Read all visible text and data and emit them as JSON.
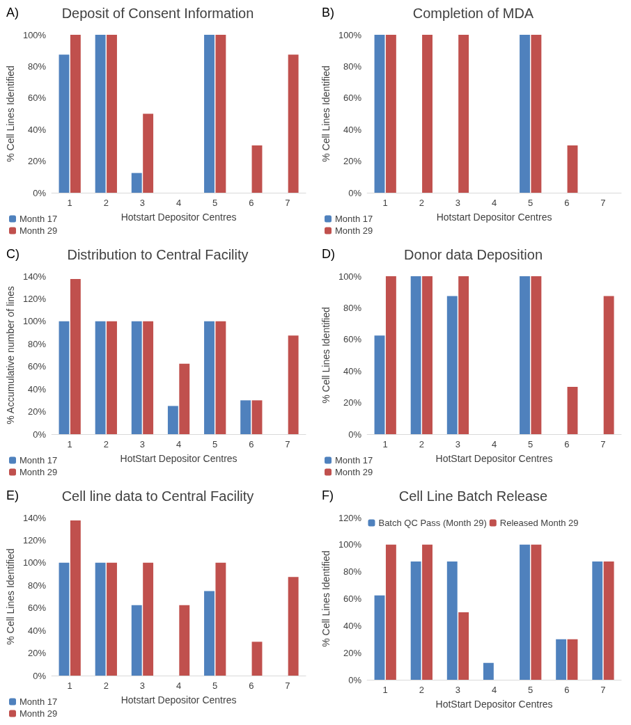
{
  "chart_data": [
    {
      "type": "bar",
      "title": "Deposit of Consent Information",
      "annotations": [
        "A)"
      ],
      "xlabel": "Hotstart Depositor Centres",
      "ylabel": "% Cell Lines Identified",
      "categories": [
        "1",
        "2",
        "3",
        "4",
        "5",
        "6",
        "7"
      ],
      "legend": "bottom left",
      "ylim": [
        0,
        100
      ],
      "yticks": [
        {
          "value": 0,
          "label": "0%"
        },
        {
          "value": 20,
          "label": "20%"
        },
        {
          "value": 40,
          "label": "40%"
        },
        {
          "value": 60,
          "label": "60%"
        },
        {
          "value": 80,
          "label": "80%"
        },
        {
          "value": 100,
          "label": "100%"
        }
      ],
      "series": [
        {
          "name": "Month 17",
          "color": "#4f81bd",
          "values": [
            87.5,
            100,
            12.5,
            0,
            100,
            0,
            0
          ]
        },
        {
          "name": "Month 29",
          "color": "#c0504d",
          "values": [
            100,
            100,
            50,
            0,
            100,
            30,
            87.5
          ]
        }
      ]
    },
    {
      "type": "bar",
      "title": "Completion of MDA",
      "annotations": [
        "B)"
      ],
      "xlabel": "Hotstart Depositor Centres",
      "ylabel": "% Cell Lines Identified",
      "categories": [
        "1",
        "2",
        "3",
        "4",
        "5",
        "6",
        "7"
      ],
      "legend": "bottom left",
      "ylim": [
        0,
        100
      ],
      "yticks": [
        {
          "value": 0,
          "label": "0%"
        },
        {
          "value": 20,
          "label": "20%"
        },
        {
          "value": 40,
          "label": "40%"
        },
        {
          "value": 60,
          "label": "60%"
        },
        {
          "value": 80,
          "label": "80%"
        },
        {
          "value": 100,
          "label": "100%"
        }
      ],
      "series": [
        {
          "name": "Month 17",
          "color": "#4f81bd",
          "values": [
            100,
            0,
            0,
            0,
            100,
            0,
            0
          ]
        },
        {
          "name": "Month 29",
          "color": "#c0504d",
          "values": [
            100,
            100,
            100,
            0,
            100,
            30,
            0
          ]
        }
      ]
    },
    {
      "type": "bar",
      "title": "Distribution to Central Facility",
      "annotations": [
        "C)"
      ],
      "xlabel": "HotStart Depositor Centres",
      "ylabel": "% Accumulative number of lines",
      "categories": [
        "1",
        "2",
        "3",
        "4",
        "5",
        "6",
        "7"
      ],
      "legend": "bottom left",
      "ylim": [
        0,
        140
      ],
      "yticks": [
        {
          "value": 0,
          "label": "0%"
        },
        {
          "value": 20,
          "label": "20%"
        },
        {
          "value": 40,
          "label": "40%"
        },
        {
          "value": 60,
          "label": "60%"
        },
        {
          "value": 80,
          "label": "80%"
        },
        {
          "value": 100,
          "label": "100%"
        },
        {
          "value": 120,
          "label": "120%"
        },
        {
          "value": 140,
          "label": "140%"
        }
      ],
      "series": [
        {
          "name": "Month 17",
          "color": "#4f81bd",
          "values": [
            100,
            100,
            100,
            25,
            100,
            30,
            0
          ]
        },
        {
          "name": "Month 29",
          "color": "#c0504d",
          "values": [
            137.5,
            100,
            100,
            62.5,
            100,
            30,
            87.5
          ]
        }
      ]
    },
    {
      "type": "bar",
      "title": "Donor data Deposition",
      "annotations": [
        "D)"
      ],
      "xlabel": "HotStart Depositor Centres",
      "ylabel": "% Cell Lines Identified",
      "categories": [
        "1",
        "2",
        "3",
        "4",
        "5",
        "6",
        "7"
      ],
      "legend": "bottom left",
      "ylim": [
        0,
        100
      ],
      "yticks": [
        {
          "value": 0,
          "label": "0%"
        },
        {
          "value": 20,
          "label": "20%"
        },
        {
          "value": 40,
          "label": "40%"
        },
        {
          "value": 60,
          "label": "60%"
        },
        {
          "value": 80,
          "label": "80%"
        },
        {
          "value": 100,
          "label": "100%"
        }
      ],
      "series": [
        {
          "name": "Month 17",
          "color": "#4f81bd",
          "values": [
            62.5,
            100,
            87.5,
            0,
            100,
            0,
            0
          ]
        },
        {
          "name": "Month 29",
          "color": "#c0504d",
          "values": [
            100,
            100,
            100,
            0,
            100,
            30,
            87.5
          ]
        }
      ]
    },
    {
      "type": "bar",
      "title": "Cell line data to Central Facility",
      "annotations": [
        "E)"
      ],
      "xlabel": "Hotstart Depositor Centres",
      "ylabel": "% Cell Lines Identified",
      "categories": [
        "1",
        "2",
        "3",
        "4",
        "5",
        "6",
        "7"
      ],
      "legend": "bottom left",
      "ylim": [
        0,
        140
      ],
      "yticks": [
        {
          "value": 0,
          "label": "0%"
        },
        {
          "value": 20,
          "label": "20%"
        },
        {
          "value": 40,
          "label": "40%"
        },
        {
          "value": 60,
          "label": "60%"
        },
        {
          "value": 80,
          "label": "80%"
        },
        {
          "value": 100,
          "label": "100%"
        },
        {
          "value": 120,
          "label": "120%"
        },
        {
          "value": 140,
          "label": "140%"
        }
      ],
      "series": [
        {
          "name": "Month 17",
          "color": "#4f81bd",
          "values": [
            100,
            100,
            62.5,
            0,
            75,
            0,
            0
          ]
        },
        {
          "name": "Month 29",
          "color": "#c0504d",
          "values": [
            137.5,
            100,
            100,
            62.5,
            100,
            30,
            87.5
          ]
        }
      ]
    },
    {
      "type": "bar",
      "title": "Cell Line Batch Release",
      "annotations": [
        "F)"
      ],
      "xlabel": "HotStart Depositor Centres",
      "ylabel": "% Cell Lines Identified",
      "categories": [
        "1",
        "2",
        "3",
        "4",
        "5",
        "6",
        "7"
      ],
      "legend": "top",
      "ylim": [
        0,
        120
      ],
      "yticks": [
        {
          "value": 0,
          "label": "0%"
        },
        {
          "value": 20,
          "label": "20%"
        },
        {
          "value": 40,
          "label": "40%"
        },
        {
          "value": 60,
          "label": "60%"
        },
        {
          "value": 80,
          "label": "80%"
        },
        {
          "value": 100,
          "label": "100%"
        },
        {
          "value": 120,
          "label": "120%"
        }
      ],
      "series": [
        {
          "name": "Batch QC Pass (Month 29)",
          "color": "#4f81bd",
          "values": [
            62.5,
            87.5,
            87.5,
            12.5,
            100,
            30,
            87.5
          ]
        },
        {
          "name": "Released Month 29",
          "color": "#c0504d",
          "values": [
            100,
            100,
            50,
            0,
            100,
            30,
            87.5
          ]
        }
      ]
    }
  ]
}
